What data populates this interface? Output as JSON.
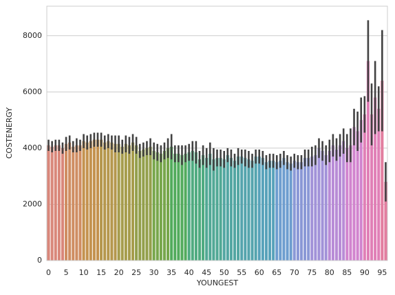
{
  "chart_data": {
    "type": "bar",
    "x_label": "YOUNGEST",
    "y_label": "COSTENERGY",
    "categories": [
      0,
      null,
      null,
      null,
      null,
      5,
      null,
      null,
      null,
      null,
      10,
      null,
      null,
      null,
      null,
      15,
      null,
      null,
      null,
      null,
      20,
      null,
      null,
      null,
      null,
      25,
      null,
      null,
      null,
      null,
      30,
      null,
      null,
      null,
      null,
      35,
      null,
      null,
      null,
      null,
      40,
      null,
      null,
      null,
      null,
      45,
      null,
      null,
      null,
      null,
      50,
      null,
      null,
      null,
      null,
      55,
      null,
      null,
      null,
      null,
      60,
      null,
      null,
      null,
      null,
      65,
      null,
      null,
      null,
      null,
      70,
      null,
      null,
      null,
      null,
      75,
      null,
      null,
      null,
      null,
      80,
      null,
      null,
      null,
      null,
      85,
      null,
      null,
      null,
      null,
      90,
      null,
      null,
      null,
      null,
      95,
      null
    ],
    "values": [
      4100,
      4050,
      4100,
      4100,
      4000,
      4150,
      4200,
      4050,
      4100,
      4100,
      4250,
      4200,
      4250,
      4300,
      4300,
      4300,
      4200,
      4250,
      4200,
      4150,
      4150,
      4050,
      4150,
      4100,
      4200,
      4100,
      3900,
      3950,
      4000,
      4050,
      3900,
      3850,
      3800,
      3900,
      4000,
      4050,
      3800,
      3800,
      3750,
      3800,
      3850,
      3900,
      3850,
      3600,
      3750,
      3650,
      3800,
      3600,
      3650,
      3650,
      3600,
      3750,
      3650,
      3550,
      3700,
      3700,
      3650,
      3600,
      3550,
      3700,
      3700,
      3650,
      3500,
      3550,
      3550,
      3500,
      3550,
      3650,
      3500,
      3450,
      3550,
      3500,
      3500,
      3650,
      3650,
      3700,
      3750,
      4000,
      3900,
      3750,
      3900,
      4100,
      3950,
      4100,
      4250,
      4000,
      4100,
      4750,
      4600,
      5000,
      5200,
      7100,
      5200,
      5800,
      5400,
      6400,
      2800
    ],
    "errors": [
      200,
      200,
      200,
      200,
      200,
      250,
      250,
      200,
      250,
      200,
      250,
      250,
      250,
      250,
      250,
      250,
      250,
      250,
      250,
      300,
      300,
      250,
      300,
      300,
      300,
      300,
      250,
      250,
      250,
      300,
      300,
      300,
      300,
      300,
      350,
      450,
      300,
      300,
      350,
      300,
      300,
      350,
      400,
      300,
      350,
      350,
      400,
      400,
      300,
      300,
      300,
      250,
      300,
      250,
      300,
      250,
      300,
      300,
      250,
      250,
      250,
      250,
      250,
      250,
      250,
      250,
      250,
      250,
      250,
      250,
      250,
      250,
      250,
      300,
      300,
      350,
      350,
      350,
      350,
      350,
      400,
      400,
      400,
      400,
      450,
      500,
      600,
      650,
      700,
      800,
      650,
      1450,
      1100,
      1300,
      800,
      1800,
      700
    ],
    "colors": [
      "#d9877a",
      "#d9877a",
      "#d9877a",
      "#d9877a",
      "#d9877a",
      "#cf8d62",
      "#cf8d62",
      "#cf8d62",
      "#cf8d62",
      "#cf8d62",
      "#c4924f",
      "#c4924f",
      "#c4924f",
      "#c4924f",
      "#c4924f",
      "#b5974d",
      "#b5974d",
      "#b5974d",
      "#b5974d",
      "#b5974d",
      "#a69c4c",
      "#a69c4c",
      "#a69c4c",
      "#a69c4c",
      "#a69c4c",
      "#939f4b",
      "#939f4b",
      "#939f4b",
      "#939f4b",
      "#939f4b",
      "#77a64b",
      "#77a64b",
      "#77a64b",
      "#77a64b",
      "#77a64b",
      "#52ab5c",
      "#52ab5c",
      "#52ab5c",
      "#52ab5c",
      "#52ab5c",
      "#4fab80",
      "#4fab80",
      "#4fab80",
      "#4fab80",
      "#4fab80",
      "#51a895",
      "#51a895",
      "#51a895",
      "#51a895",
      "#51a895",
      "#53a6a2",
      "#53a6a2",
      "#53a6a2",
      "#53a6a2",
      "#53a6a2",
      "#55a4ad",
      "#55a4ad",
      "#55a4ad",
      "#55a4ad",
      "#55a4ad",
      "#58a2ba",
      "#58a2ba",
      "#58a2ba",
      "#58a2ba",
      "#58a2ba",
      "#6d9dcf",
      "#6d9dcf",
      "#6d9dcf",
      "#6d9dcf",
      "#6d9dcf",
      "#8a98d6",
      "#8a98d6",
      "#8a98d6",
      "#8a98d6",
      "#8a98d6",
      "#a192d8",
      "#a192d8",
      "#a192d8",
      "#a192d8",
      "#a192d8",
      "#b88bd6",
      "#b88bd6",
      "#b88bd6",
      "#b88bd6",
      "#b88bd6",
      "#d184ce",
      "#d184ce",
      "#d184ce",
      "#d184ce",
      "#d184ce",
      "#e07fb6",
      "#e07fb6",
      "#e07fb6",
      "#e07fb6",
      "#e07fb6",
      "#e27e9f",
      "#e27e9f"
    ],
    "error_color": "#424242",
    "ylim": [
      0,
      9050
    ],
    "yticks": [
      0,
      2000,
      4000,
      6000,
      8000
    ],
    "grid": true
  }
}
